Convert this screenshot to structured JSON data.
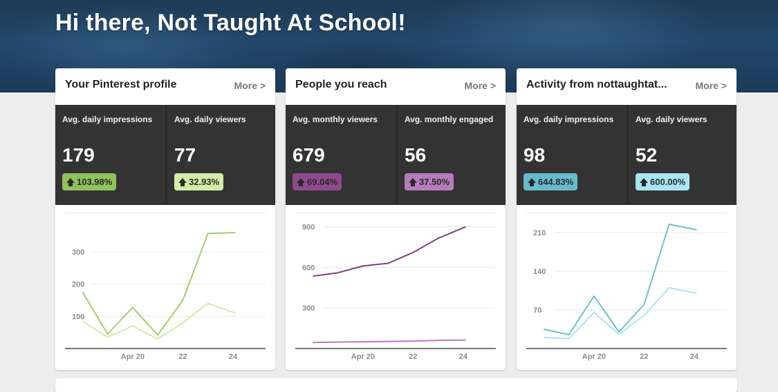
{
  "greeting": "Hi there, Not Taught At School!",
  "more_label": "More >",
  "cards": [
    {
      "title": "Your Pinterest profile",
      "stats": [
        {
          "label": "Avg. daily impressions",
          "value": "179",
          "change": "103.98%",
          "badge_color": "#8fc35c"
        },
        {
          "label": "Avg. daily viewers",
          "value": "77",
          "change": "32.93%",
          "badge_color": "#d2eca8"
        }
      ]
    },
    {
      "title": "People you reach",
      "stats": [
        {
          "label": "Avg. monthly viewers",
          "value": "679",
          "change": "69.04%",
          "badge_color": "#8e4a8d"
        },
        {
          "label": "Avg. monthly engaged",
          "value": "56",
          "change": "37.50%",
          "badge_color": "#b67cba"
        }
      ]
    },
    {
      "title": "Activity from nottaughtat...",
      "stats": [
        {
          "label": "Avg. daily impressions",
          "value": "98",
          "change": "644.83%",
          "badge_color": "#66bccb"
        },
        {
          "label": "Avg. daily viewers",
          "value": "52",
          "change": "600.00%",
          "badge_color": "#a6e6f3"
        }
      ]
    }
  ],
  "chart_data": [
    {
      "type": "line",
      "x": [
        18,
        19,
        20,
        21,
        22,
        23,
        24,
        25
      ],
      "x_tick_labels": [
        {
          "x": 20,
          "label": "Apr 20"
        },
        {
          "x": 22,
          "label": "22"
        },
        {
          "x": 24,
          "label": "24"
        }
      ],
      "yticks": [
        100,
        200,
        300
      ],
      "ylim": [
        0,
        420
      ],
      "series": [
        {
          "values": [
            175,
            45,
            128,
            42,
            150,
            357,
            360
          ],
          "x": [
            18,
            19,
            20,
            21,
            22,
            23,
            24.1
          ],
          "color": "#a6cd6a"
        },
        {
          "values": [
            85,
            35,
            70,
            30,
            80,
            140,
            110
          ],
          "x": [
            18,
            19,
            20,
            21,
            22,
            23,
            24.1
          ],
          "color": "#d3eaa8"
        }
      ]
    },
    {
      "type": "line",
      "x": [
        18,
        19,
        20,
        21,
        22,
        23,
        24,
        25
      ],
      "x_tick_labels": [
        {
          "x": 20,
          "label": "Apr 20"
        },
        {
          "x": 22,
          "label": "22"
        },
        {
          "x": 24,
          "label": "24"
        }
      ],
      "yticks": [
        300,
        600,
        900
      ],
      "ylim": [
        0,
        1000
      ],
      "series": [
        {
          "values": [
            535,
            560,
            610,
            630,
            710,
            815,
            900
          ],
          "x": [
            18,
            19,
            20,
            21,
            22,
            23,
            24.1
          ],
          "color": "#7f3f80"
        },
        {
          "values": [
            45,
            48,
            50,
            52,
            55,
            60,
            62
          ],
          "x": [
            18,
            19,
            20,
            21,
            22,
            23,
            24.1
          ],
          "color": "#b67cba"
        }
      ]
    },
    {
      "type": "line",
      "x": [
        18,
        19,
        20,
        21,
        22,
        23,
        24,
        25
      ],
      "x_tick_labels": [
        {
          "x": 20,
          "label": "Apr 20"
        },
        {
          "x": 22,
          "label": "22"
        },
        {
          "x": 24,
          "label": "24"
        }
      ],
      "yticks": [
        70,
        140,
        210
      ],
      "ylim": [
        0,
        245
      ],
      "series": [
        {
          "values": [
            35,
            25,
            95,
            30,
            80,
            225,
            215
          ],
          "x": [
            18,
            19,
            20,
            21,
            22,
            23,
            24.1
          ],
          "color": "#6fbfcd"
        },
        {
          "values": [
            20,
            18,
            65,
            26,
            60,
            110,
            100
          ],
          "x": [
            18,
            19,
            20,
            21,
            22,
            23,
            24.1
          ],
          "color": "#a8e4f0"
        }
      ]
    }
  ]
}
